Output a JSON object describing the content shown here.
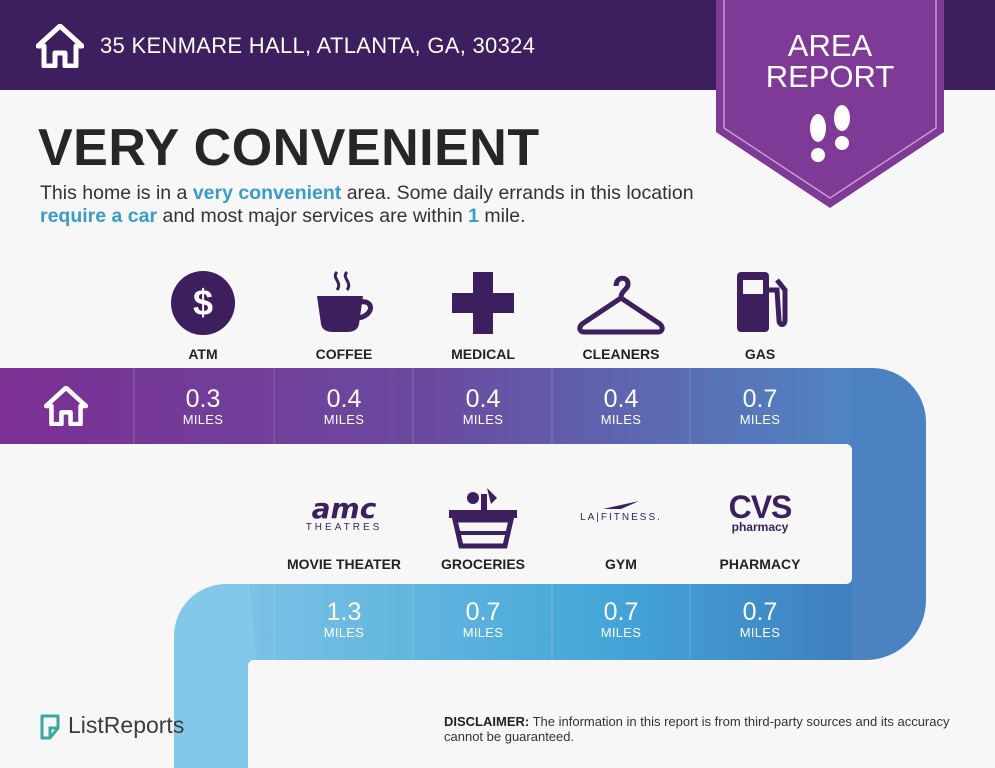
{
  "header": {
    "address": "35 KENMARE HALL, ATLANTA, GA, 30324"
  },
  "badge": {
    "line1": "AREA",
    "line2": "REPORT",
    "icon": "footprints-icon"
  },
  "headline": "VERY CONVENIENT",
  "description": {
    "p1": "This home is in a ",
    "h1": "very convenient",
    "p2": " area. Some daily errands in this location ",
    "h2": "require a car",
    "p3": " and most major services are within ",
    "h3": "1",
    "p4": " mile."
  },
  "unit_label": "MILES",
  "row1": [
    {
      "label": "ATM",
      "value": "0.3",
      "icon": "dollar-icon"
    },
    {
      "label": "COFFEE",
      "value": "0.4",
      "icon": "coffee-icon"
    },
    {
      "label": "MEDICAL",
      "value": "0.4",
      "icon": "medical-cross-icon"
    },
    {
      "label": "CLEANERS",
      "value": "0.4",
      "icon": "hanger-icon"
    },
    {
      "label": "GAS",
      "value": "0.7",
      "icon": "gas-pump-icon"
    }
  ],
  "row2": [
    {
      "label": "MOVIE THEATER",
      "value": "1.3",
      "icon": "amc-logo",
      "logo_main": "amc",
      "logo_sub": "THEATRES"
    },
    {
      "label": "GROCERIES",
      "value": "0.7",
      "icon": "basket-icon"
    },
    {
      "label": "GYM",
      "value": "0.7",
      "icon": "la-fitness-logo",
      "logo_main": "LA|FITNESS."
    },
    {
      "label": "PHARMACY",
      "value": "0.7",
      "icon": "cvs-logo",
      "logo_main": "CVS",
      "logo_sub": "pharmacy"
    }
  ],
  "footer": {
    "brand": "ListReports",
    "disclaimer_label": "DISCLAIMER:",
    "disclaimer_text": " The information in this report is from third-party sources and its accuracy cannot be guaranteed."
  },
  "colors": {
    "header_bg": "#3d1e5e",
    "badge_bg": "#7e3a96",
    "accent_text": "#3a9cc5",
    "icon_dark": "#3d1e5e"
  }
}
